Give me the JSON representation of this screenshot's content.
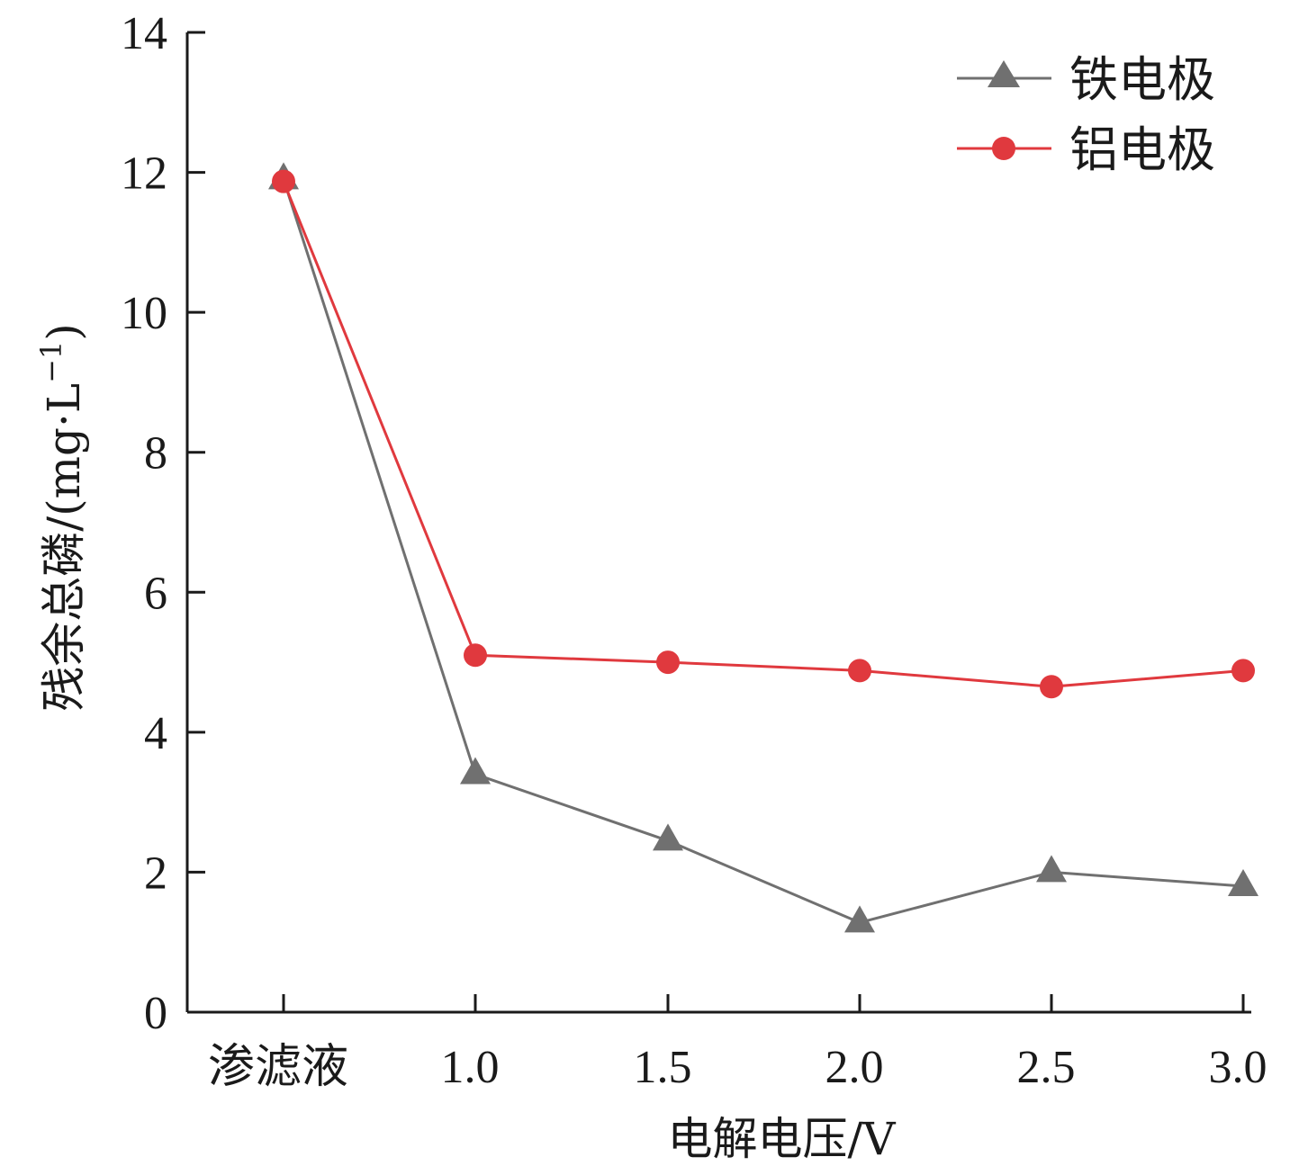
{
  "chart_data": {
    "type": "line",
    "title": "",
    "xlabel": "电解电压/V",
    "ylabel": "残余总磷/(mg·L",
    "ylabel_sup": "−1",
    "ylabel_close": ")",
    "categories": [
      "渗滤液",
      "1.0",
      "1.5",
      "2.0",
      "2.5",
      "3.0"
    ],
    "ylim": [
      0,
      14
    ],
    "yticks": [
      0,
      2,
      4,
      6,
      8,
      10,
      12,
      14
    ],
    "grid": false,
    "legend_position": "top-right",
    "series": [
      {
        "name": "铁电极",
        "marker": "triangle",
        "color": "#707070",
        "values": [
          11.9,
          3.4,
          2.45,
          1.28,
          2.0,
          1.8
        ]
      },
      {
        "name": "铝电极",
        "marker": "circle",
        "color": "#e0393e",
        "values": [
          11.87,
          5.1,
          5.0,
          4.88,
          4.65,
          4.88
        ]
      }
    ]
  }
}
